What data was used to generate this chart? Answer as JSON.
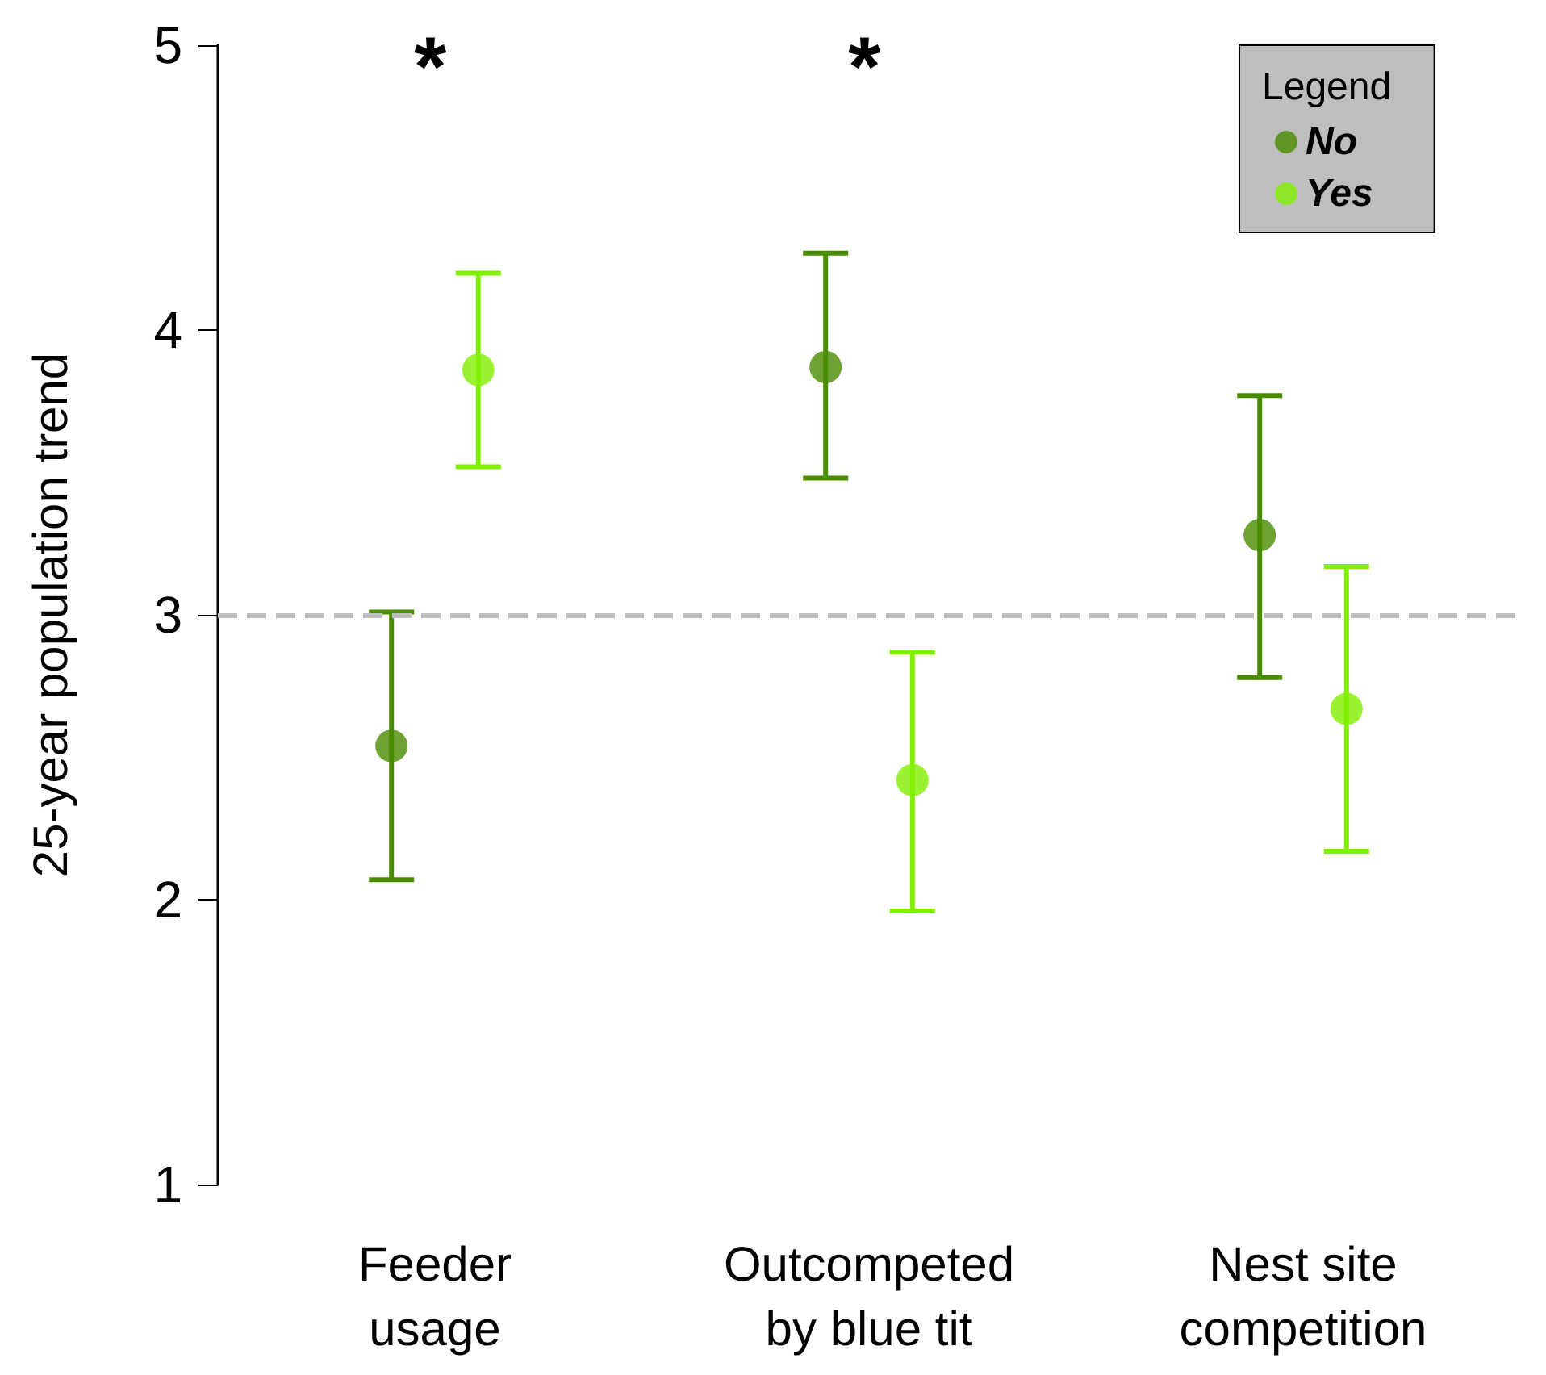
{
  "chart_data": {
    "type": "scatter",
    "ylabel": "25-year population trend",
    "legend_title": "Legend",
    "categories": [
      "Feeder\nusage",
      "Outcompeted\nby blue tit",
      "Nest site\ncompetition"
    ],
    "series": [
      {
        "name": "No",
        "color": "#4a8c00",
        "values": [
          2.54,
          3.87,
          3.28
        ],
        "errors": [
          [
            2.07,
            3.01
          ],
          [
            3.48,
            4.27
          ],
          [
            2.78,
            3.77
          ]
        ]
      },
      {
        "name": "Yes",
        "color": "#80f000",
        "values": [
          3.86,
          2.42,
          2.67
        ],
        "errors": [
          [
            3.52,
            4.2
          ],
          [
            1.96,
            2.87
          ],
          [
            2.17,
            3.17
          ]
        ]
      }
    ],
    "ylim": [
      1,
      5
    ],
    "yticks": [
      1,
      2,
      3,
      4,
      5
    ],
    "ref_lines": [
      {
        "axis": "y",
        "value": 3,
        "color": "#bebebe",
        "line_style": "dashed"
      }
    ],
    "annotations": [
      "*",
      "*"
    ],
    "marker": "circle",
    "grid": false,
    "legend": "top right"
  }
}
